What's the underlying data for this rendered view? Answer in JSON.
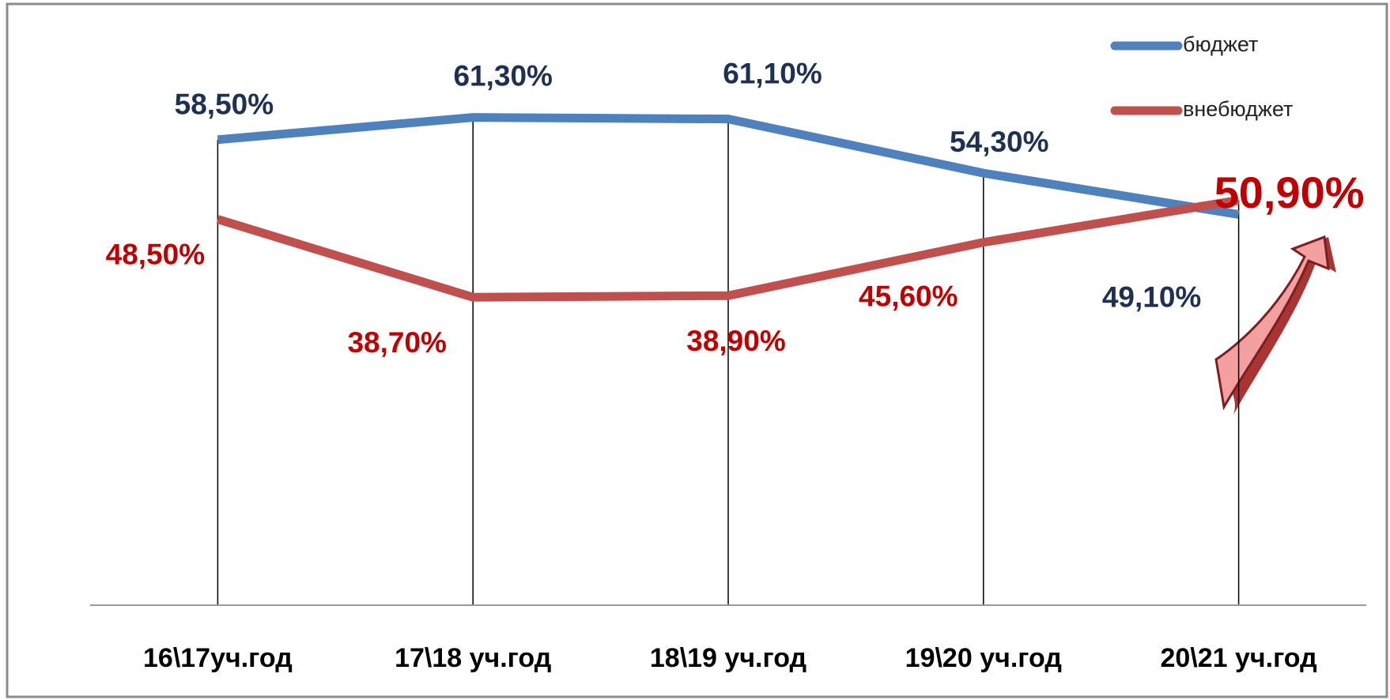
{
  "chart_data": {
    "type": "line",
    "categories": [
      "16\\17уч.год",
      "17\\18 уч.год",
      "18\\19 уч.год",
      "19\\20 уч.год",
      "20\\21 уч.год"
    ],
    "series": [
      {
        "name": "бюджет",
        "color": "#4f81bd",
        "values": [
          58.5,
          61.3,
          61.1,
          54.3,
          49.1
        ],
        "value_labels": [
          "58,50%",
          "61,30%",
          "61,10%",
          "54,30%",
          "49,10%"
        ]
      },
      {
        "name": "внебюджет",
        "color": "#c0504d",
        "values": [
          48.5,
          38.7,
          38.9,
          45.6,
          50.9
        ],
        "value_labels": [
          "48,50%",
          "38,70%",
          "38,90%",
          "45,60%",
          "50,90%"
        ]
      }
    ],
    "ylim": [
      0,
      70
    ],
    "drop_lines": true,
    "legend": "upper right"
  }
}
